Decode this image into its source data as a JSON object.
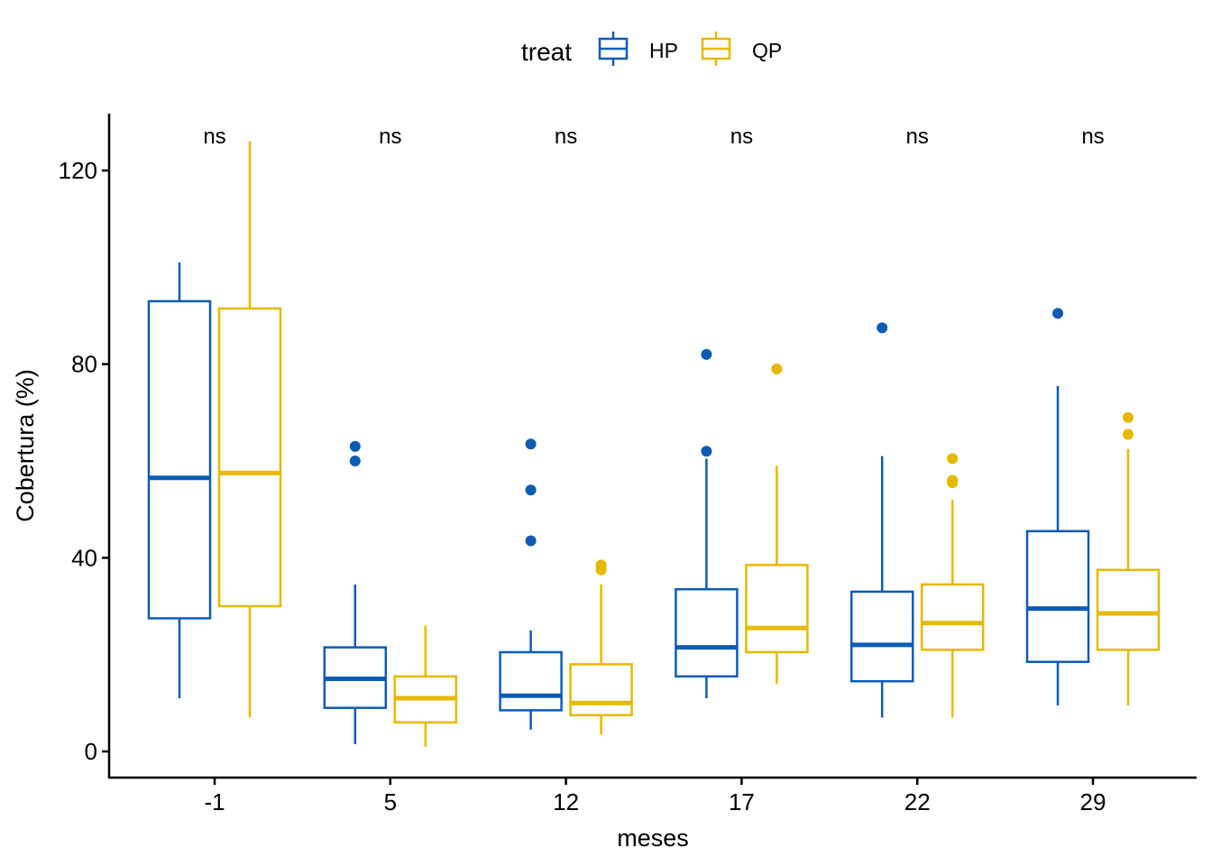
{
  "chart_data": {
    "type": "boxplot",
    "xlabel": "meses",
    "ylabel": "Cobertura (%)",
    "ylim": [
      -5,
      132
    ],
    "yticks": [
      0,
      40,
      80,
      120
    ],
    "ytick_labels": [
      "0",
      "40",
      "80",
      "120"
    ],
    "categories": [
      "-1",
      "5",
      "12",
      "17",
      "22",
      "29"
    ],
    "grid": false,
    "legend": {
      "title": "treat",
      "placement": "top"
    },
    "significance_labels": [
      "ns",
      "ns",
      "ns",
      "ns",
      "ns",
      "ns"
    ],
    "series": [
      {
        "name": "HP",
        "color": "#0c5cb5",
        "boxes": [
          {
            "lower_whisker": 11,
            "q1": 27.5,
            "median": 56.5,
            "q3": 93,
            "upper_whisker": 101,
            "outliers": []
          },
          {
            "lower_whisker": 1.5,
            "q1": 9,
            "median": 15,
            "q3": 21.5,
            "upper_whisker": 34.5,
            "outliers": [
              60,
              63
            ]
          },
          {
            "lower_whisker": 4.5,
            "q1": 8.5,
            "median": 11.5,
            "q3": 20.5,
            "upper_whisker": 25,
            "outliers": [
              43.5,
              54,
              63.5
            ]
          },
          {
            "lower_whisker": 11,
            "q1": 15.5,
            "median": 21.5,
            "q3": 33.5,
            "upper_whisker": 60.5,
            "outliers": [
              62,
              82
            ]
          },
          {
            "lower_whisker": 7,
            "q1": 14.5,
            "median": 22,
            "q3": 33,
            "upper_whisker": 61,
            "outliers": [
              87.5
            ]
          },
          {
            "lower_whisker": 9.5,
            "q1": 18.5,
            "median": 29.5,
            "q3": 45.5,
            "upper_whisker": 75.5,
            "outliers": [
              90.5
            ]
          }
        ]
      },
      {
        "name": "QP",
        "color": "#e7b800",
        "boxes": [
          {
            "lower_whisker": 7,
            "q1": 30,
            "median": 57.5,
            "q3": 91.5,
            "upper_whisker": 126,
            "outliers": []
          },
          {
            "lower_whisker": 1,
            "q1": 6,
            "median": 11,
            "q3": 15.5,
            "upper_whisker": 26,
            "outliers": []
          },
          {
            "lower_whisker": 3.5,
            "q1": 7.5,
            "median": 10,
            "q3": 18,
            "upper_whisker": 34.5,
            "outliers": [
              37.5,
              38.5
            ]
          },
          {
            "lower_whisker": 14,
            "q1": 20.5,
            "median": 25.5,
            "q3": 38.5,
            "upper_whisker": 59,
            "outliers": [
              79
            ]
          },
          {
            "lower_whisker": 7,
            "q1": 21,
            "median": 26.5,
            "q3": 34.5,
            "upper_whisker": 52,
            "outliers": [
              55.5,
              56,
              60.5
            ]
          },
          {
            "lower_whisker": 9.5,
            "q1": 21,
            "median": 28.5,
            "q3": 37.5,
            "upper_whisker": 62.5,
            "outliers": [
              65.5,
              69
            ]
          }
        ]
      }
    ]
  }
}
